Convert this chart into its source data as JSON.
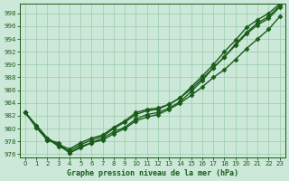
{
  "title": "Graphe pression niveau de la mer (hPa)",
  "background_color": "#cce8d8",
  "grid_color": "#99ccaa",
  "line_color": "#1a5c1a",
  "xlim": [
    -0.5,
    23.5
  ],
  "ylim": [
    975.5,
    999.5
  ],
  "yticks": [
    976,
    978,
    980,
    982,
    984,
    986,
    988,
    990,
    992,
    994,
    996,
    998
  ],
  "xticks": [
    0,
    1,
    2,
    3,
    4,
    5,
    6,
    7,
    8,
    9,
    10,
    11,
    12,
    13,
    14,
    15,
    16,
    17,
    18,
    19,
    20,
    21,
    22,
    23
  ],
  "series": [
    [
      982.5,
      980.2,
      978.2,
      977.8,
      976.2,
      977.2,
      977.8,
      978.5,
      979.5,
      980.2,
      981.5,
      982.2,
      982.5,
      983.2,
      984.2,
      985.8,
      987.5,
      989.5,
      991.2,
      993.2,
      995.0,
      996.5,
      997.5,
      999.2
    ],
    [
      982.5,
      980.2,
      978.2,
      977.5,
      976.2,
      977.0,
      977.8,
      978.2,
      979.2,
      980.0,
      981.2,
      981.8,
      982.2,
      983.0,
      984.0,
      985.2,
      986.5,
      988.0,
      989.2,
      990.8,
      992.5,
      994.0,
      995.5,
      997.5
    ],
    [
      982.5,
      980.5,
      978.5,
      977.2,
      976.5,
      977.5,
      978.2,
      978.8,
      980.0,
      981.0,
      982.2,
      982.8,
      983.0,
      983.8,
      984.8,
      986.5,
      988.2,
      990.0,
      992.0,
      993.8,
      995.8,
      997.0,
      998.0,
      999.5
    ],
    [
      982.5,
      980.5,
      978.5,
      977.5,
      976.8,
      977.8,
      978.5,
      979.0,
      980.2,
      981.2,
      982.5,
      983.0,
      983.2,
      983.8,
      984.8,
      986.2,
      987.8,
      989.5,
      991.2,
      993.0,
      994.8,
      996.2,
      997.2,
      999.0
    ]
  ],
  "marker": "D",
  "marker_size": 2.5,
  "line_width": 1.0,
  "title_fontsize": 6,
  "tick_fontsize": 5
}
